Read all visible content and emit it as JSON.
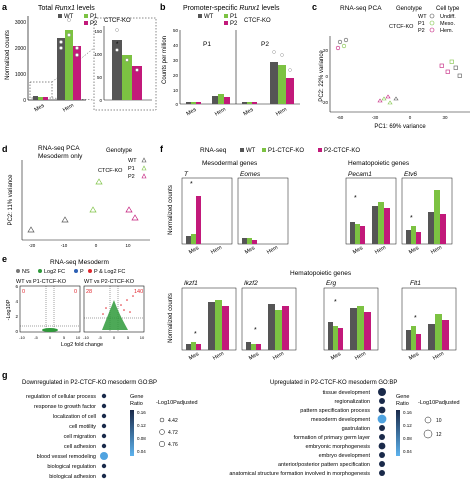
{
  "panels": {
    "a": {
      "letter": "a",
      "title_prefix": "Total ",
      "title_gene": "Runx1",
      "title_suffix": " levels",
      "ylabel": "Normalized counts",
      "yticks_left": [
        "0",
        "1000",
        "2000",
        "3000"
      ],
      "yticks_right": [
        "0",
        "50",
        "100",
        "150"
      ],
      "categories": [
        "Mes",
        "Hem"
      ],
      "legend": [
        "WT",
        "P1",
        "P2"
      ],
      "legend_extra": "CTCF-KO"
    },
    "b": {
      "letter": "b",
      "title_prefix": "Promoter-specific ",
      "title_gene": "Runx1",
      "title_suffix": " levels",
      "ylabel": "Counts per million",
      "yticks": [
        "0",
        "10",
        "20",
        "30",
        "40",
        "50"
      ],
      "subpanels": [
        "P1",
        "P2"
      ],
      "categories": [
        "Mes",
        "Hem"
      ],
      "legend": [
        "WT",
        "P1",
        "P2"
      ],
      "legend_extra": "CTCF-KO"
    },
    "c": {
      "letter": "c",
      "title": "RNA-seq PCA",
      "legend_genotype_title": "Genotype",
      "legend_genotype": [
        "WT",
        "P1",
        "P2"
      ],
      "legend_extra": "CTCF-KO",
      "legend_celltype_title": "Cell type",
      "legend_celltype": [
        "Undiff.",
        "Meso.",
        "Hem."
      ],
      "xlabel": "PC1: 69% variance",
      "ylabel": "PC2: 22% variance",
      "xticks": [
        "-60",
        "-30",
        "0",
        "30"
      ],
      "yticks": [
        "-20",
        "0",
        "20"
      ]
    },
    "d": {
      "letter": "d",
      "title_line1": "RNA-seq PCA",
      "title_line2": "Mesoderm only",
      "legend_title": "Genotype",
      "legend": [
        "WT",
        "P1",
        "P2"
      ],
      "legend_extra": "CTCF-KO",
      "ylabel": "PC2: 11% variance",
      "xticks": [
        "-20",
        "-10",
        "0",
        "10"
      ]
    },
    "e": {
      "letter": "e",
      "title": "RNA-seq Mesoderm",
      "legend": [
        "NS",
        "Log2 FC",
        "P",
        "P & Log2 FC"
      ],
      "comparisons": [
        "WT vs P1-CTCF-KO",
        "WT vs P2-CTCF-KO"
      ],
      "counts_left": [
        "0",
        "0"
      ],
      "counts_right": [
        "28",
        "140"
      ],
      "xlabel": "Log2 fold change",
      "ylabel": "-Log10P",
      "xticks": [
        "-10",
        "-5",
        "0",
        "5",
        "10"
      ],
      "yticks": [
        "0",
        "2",
        "4",
        "6"
      ]
    },
    "f": {
      "letter": "f",
      "legend_title": "RNA-seq",
      "legend": [
        "WT",
        "P1-CTCF-KO",
        "P2-CTCF-KO"
      ],
      "row1_left_title": "Mesodermal genes",
      "row1_right_title": "Hematopoietic genes",
      "row2_title": "Hematopoietic genes",
      "ylabel": "Normalized counts",
      "categories": [
        "Mes",
        "Hem"
      ],
      "row1_genes": [
        "T",
        "Eomes",
        "Pecam1",
        "Etv6"
      ],
      "row2_genes": [
        "Ikzf1",
        "Ikzf2",
        "Erg",
        "Flt1"
      ]
    },
    "g": {
      "letter": "g",
      "left_title": "Downregulated in P2-CTCF-KO mesoderm GO:BP",
      "left_terms": [
        "regulation of cellular process",
        "response to growth factor",
        "localization of cell",
        "cell motility",
        "cell migration",
        "cell adhesion",
        "blood vessel remodeling",
        "biological regulation",
        "biological adhesion"
      ],
      "left_ratio_ticks": [
        "0.16",
        "0.12",
        "0.08",
        "0.04"
      ],
      "left_padj_values": [
        "4.42",
        "4.72",
        "4.76"
      ],
      "right_title": "Upregulated in P2-CTCF-KO mesoderm GO:BP",
      "right_terms": [
        "tissue development",
        "regionalization",
        "pattern specification process",
        "mesoderm development",
        "gastrulation",
        "formation of primary germ layer",
        "embryonic morphogenesis",
        "embryo development",
        "anterior/posterior pattern specification",
        "anatomical structure formation involved in morphogenesis"
      ],
      "right_ratio_ticks": [
        "0.16",
        "0.12",
        "0.08",
        "0.04"
      ],
      "right_padj_values": [
        "10",
        "12"
      ],
      "ratio_label_1": "Gene",
      "ratio_label_2": "Ratio",
      "padj_label": "-Log10Padjusted"
    }
  },
  "colors": {
    "wt": "#555555",
    "p1": "#7cc242",
    "p2": "#c2197a",
    "ns": "#777777",
    "log2fc": "#2e9a3a",
    "p": "#2b5fb4",
    "both": "#e0262e"
  }
}
